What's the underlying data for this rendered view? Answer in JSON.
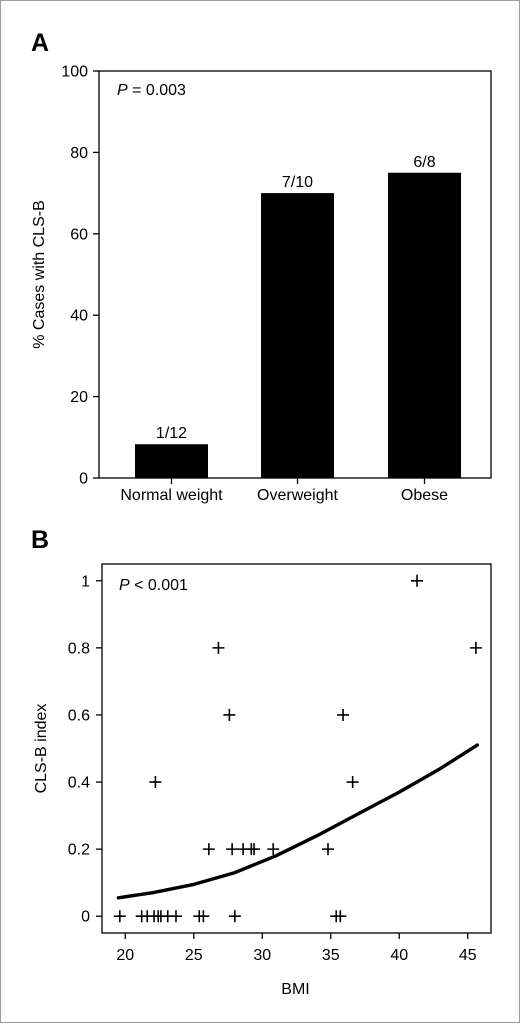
{
  "chart_data": [
    {
      "panel": "A",
      "type": "bar",
      "annotation": {
        "p_symbol": "P",
        "p_text": " = 0.003"
      },
      "ylabel": "% Cases with CLS-B",
      "xlabel": "",
      "ylim": [
        0,
        100
      ],
      "yticks": [
        0,
        20,
        40,
        60,
        80,
        100
      ],
      "categories": [
        "Normal weight",
        "Overweight",
        "Obese"
      ],
      "values": [
        8.3,
        70,
        75
      ],
      "data_labels": [
        "1/12",
        "7/10",
        "6/8"
      ],
      "bar_color": "#000000",
      "grid": false
    },
    {
      "panel": "B",
      "type": "scatter",
      "annotation": {
        "p_symbol": "P",
        "p_text": " < 0.001"
      },
      "xlabel": "BMI",
      "ylabel": "CLS-B index",
      "xlim": [
        18.3,
        46.7
      ],
      "ylim": [
        -0.05,
        1.05
      ],
      "xticks": [
        20,
        25,
        30,
        35,
        40,
        45
      ],
      "yticks": [
        0,
        0.2,
        0.4,
        0.6,
        0.8,
        1
      ],
      "ytick_labels": [
        "0",
        "0.2",
        "0.4",
        "0.6",
        "0.8",
        "1"
      ],
      "marker": "+",
      "points": [
        {
          "x": 19.6,
          "y": 0
        },
        {
          "x": 21.2,
          "y": 0
        },
        {
          "x": 21.6,
          "y": 0
        },
        {
          "x": 22.1,
          "y": 0
        },
        {
          "x": 22.4,
          "y": 0
        },
        {
          "x": 22.6,
          "y": 0
        },
        {
          "x": 23.1,
          "y": 0
        },
        {
          "x": 23.7,
          "y": 0
        },
        {
          "x": 25.4,
          "y": 0
        },
        {
          "x": 25.7,
          "y": 0
        },
        {
          "x": 28.0,
          "y": 0
        },
        {
          "x": 35.4,
          "y": 0
        },
        {
          "x": 35.7,
          "y": 0
        },
        {
          "x": 26.1,
          "y": 0.2
        },
        {
          "x": 27.8,
          "y": 0.2
        },
        {
          "x": 28.6,
          "y": 0.2
        },
        {
          "x": 29.2,
          "y": 0.2
        },
        {
          "x": 29.4,
          "y": 0.2
        },
        {
          "x": 30.8,
          "y": 0.2
        },
        {
          "x": 34.8,
          "y": 0.2
        },
        {
          "x": 22.2,
          "y": 0.4
        },
        {
          "x": 36.6,
          "y": 0.4
        },
        {
          "x": 27.6,
          "y": 0.6
        },
        {
          "x": 35.9,
          "y": 0.6
        },
        {
          "x": 26.8,
          "y": 0.8
        },
        {
          "x": 45.6,
          "y": 0.8
        },
        {
          "x": 41.3,
          "y": 1.0
        }
      ],
      "fit_line": [
        {
          "x": 19.5,
          "y": 0.055
        },
        {
          "x": 22,
          "y": 0.07
        },
        {
          "x": 25,
          "y": 0.095
        },
        {
          "x": 28,
          "y": 0.13
        },
        {
          "x": 31,
          "y": 0.18
        },
        {
          "x": 34,
          "y": 0.24
        },
        {
          "x": 37,
          "y": 0.305
        },
        {
          "x": 40,
          "y": 0.37
        },
        {
          "x": 43,
          "y": 0.44
        },
        {
          "x": 45.7,
          "y": 0.51
        }
      ],
      "grid": false
    }
  ]
}
